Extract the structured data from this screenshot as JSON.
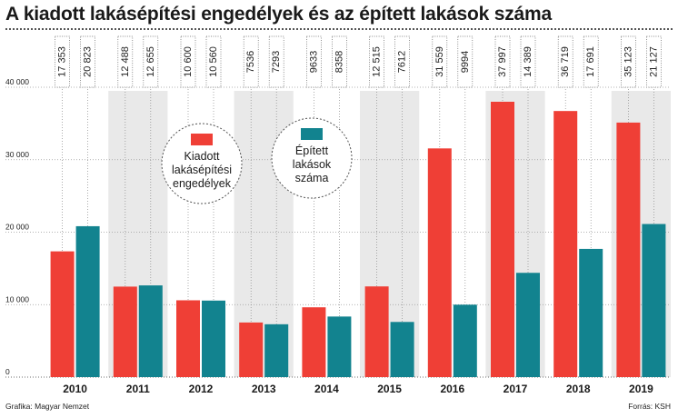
{
  "title": "A kiadott lakásépítési engedélyek és az épített lakások száma",
  "credit_left": "Grafika: Magyar Nemzet",
  "credit_right": "Forrás: KSH",
  "legend": [
    {
      "label_lines": [
        "Kiadott",
        "lakásépítési",
        "engedélyek"
      ],
      "color": "#ef3f36"
    },
    {
      "label_lines": [
        "Épített",
        "lakások",
        "száma"
      ],
      "color": "#12838f"
    }
  ],
  "chart_data": {
    "type": "bar",
    "title": "A kiadott lakásépítési engedélyek és az épített lakások száma",
    "categories": [
      "2010",
      "2011",
      "2012",
      "2013",
      "2014",
      "2015",
      "2016",
      "2017",
      "2018",
      "2019"
    ],
    "series": [
      {
        "name": "Kiadott lakásépítési engedélyek",
        "color": "#ef3f36",
        "values": [
          17353,
          12488,
          10600,
          7536,
          9633,
          12515,
          31559,
          37997,
          36719,
          35123
        ],
        "labels": [
          "17 353",
          "12 488",
          "10 600",
          "7536",
          "9633",
          "12 515",
          "31 559",
          "37 997",
          "36 719",
          "35 123"
        ]
      },
      {
        "name": "Épített lakások száma",
        "color": "#12838f",
        "values": [
          20823,
          12655,
          10560,
          7293,
          8358,
          7612,
          9994,
          14389,
          17691,
          21127
        ],
        "labels": [
          "20 823",
          "12 655",
          "10 560",
          "7293",
          "8358",
          "7612",
          "9994",
          "14 389",
          "17 691",
          "21 127"
        ]
      }
    ],
    "ylim": [
      0,
      40000
    ],
    "yticks": [
      0,
      10000,
      20000,
      30000,
      40000
    ],
    "ytick_labels": [
      "0",
      "10 000",
      "20 000",
      "30 000",
      "40 000"
    ],
    "grid": true,
    "xlabel": "",
    "ylabel": ""
  }
}
